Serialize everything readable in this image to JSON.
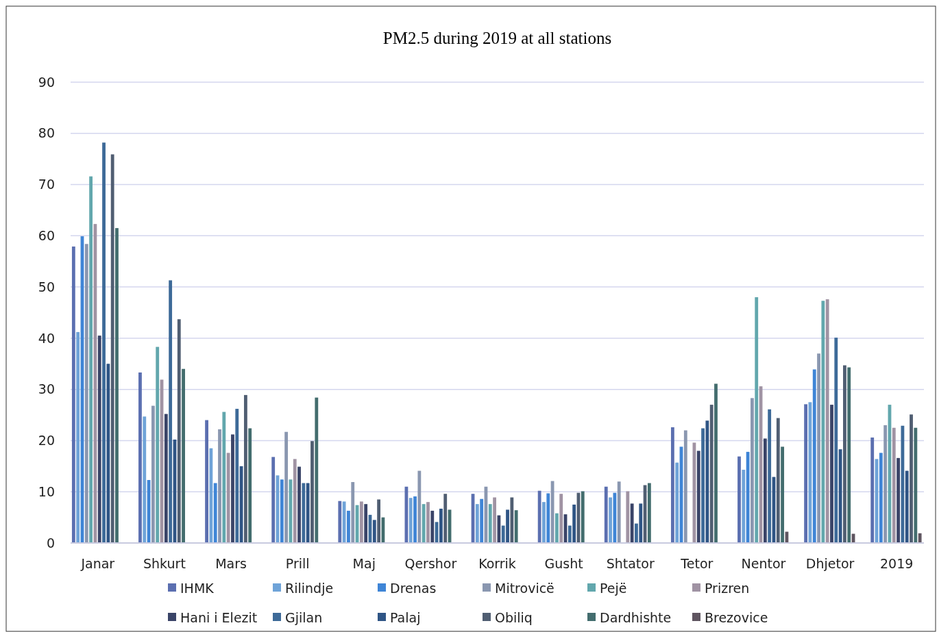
{
  "chart_data": {
    "type": "bar",
    "title": "PM2.5 during 2019 at all stations",
    "categories": [
      "Janar",
      "Shkurt",
      "Mars",
      "Prill",
      "Maj",
      "Qershor",
      "Korrik",
      "Gusht",
      "Shtator",
      "Tetor",
      "Nentor",
      "Dhjetor",
      "2019"
    ],
    "ylim": [
      0,
      90
    ],
    "yticks": [
      0,
      10,
      20,
      30,
      40,
      50,
      60,
      70,
      80,
      90
    ],
    "grid": "y",
    "legend": "bottom",
    "series": [
      {
        "name": "IHMK",
        "color": "#5b6fb0",
        "values": [
          57.9,
          33.3,
          24.0,
          16.8,
          8.2,
          11.0,
          9.6,
          10.2,
          11.0,
          22.6,
          16.9,
          27.1,
          20.6
        ]
      },
      {
        "name": "Rilindje",
        "color": "#6fa3d8",
        "values": [
          41.2,
          24.7,
          18.5,
          13.2,
          8.1,
          8.8,
          7.6,
          8.0,
          8.9,
          15.7,
          14.3,
          27.5,
          16.4
        ]
      },
      {
        "name": "Drenas",
        "color": "#3f85d6",
        "values": [
          59.9,
          12.3,
          11.7,
          12.4,
          6.3,
          9.1,
          8.6,
          9.7,
          9.8,
          18.8,
          17.8,
          33.9,
          17.6
        ]
      },
      {
        "name": "Mitrovicë",
        "color": "#8a97b0",
        "values": [
          58.4,
          26.8,
          22.2,
          21.7,
          11.9,
          14.1,
          11.0,
          12.1,
          12.0,
          22.0,
          28.3,
          37.0,
          23.0
        ]
      },
      {
        "name": "Pejë",
        "color": "#62a7ad",
        "values": [
          71.6,
          38.3,
          25.6,
          12.4,
          7.4,
          7.6,
          7.6,
          5.8,
          null,
          null,
          48.0,
          47.3,
          27.0
        ]
      },
      {
        "name": "Prizren",
        "color": "#a093a3",
        "values": [
          62.3,
          31.9,
          17.6,
          16.4,
          8.1,
          8.0,
          8.9,
          9.6,
          10.1,
          19.6,
          30.6,
          47.6,
          22.5
        ]
      },
      {
        "name": "Hani i Elezit",
        "color": "#3a4468",
        "values": [
          40.5,
          25.2,
          21.2,
          14.9,
          7.6,
          6.3,
          5.4,
          5.6,
          7.7,
          18.0,
          20.4,
          27.0,
          16.6
        ]
      },
      {
        "name": "Gjilan",
        "color": "#3d6a98",
        "values": [
          78.2,
          51.3,
          26.2,
          11.7,
          5.5,
          4.1,
          3.4,
          3.4,
          3.8,
          22.4,
          26.1,
          40.1,
          22.9
        ]
      },
      {
        "name": "Palaj",
        "color": "#2f5585",
        "values": [
          35.0,
          20.2,
          15.0,
          11.7,
          4.5,
          6.7,
          6.5,
          7.5,
          7.7,
          23.9,
          12.9,
          18.3,
          14.1
        ]
      },
      {
        "name": "Obiliq",
        "color": "#505e72",
        "values": [
          75.9,
          43.7,
          28.9,
          19.9,
          8.5,
          9.6,
          8.9,
          9.8,
          11.3,
          27.0,
          24.4,
          34.7,
          25.1
        ]
      },
      {
        "name": "Dardhishte",
        "color": "#436d6e",
        "values": [
          61.5,
          34.0,
          22.4,
          28.4,
          5.0,
          6.5,
          6.4,
          10.1,
          11.7,
          31.1,
          18.8,
          34.3,
          22.5
        ]
      },
      {
        "name": "Brezovice",
        "color": "#5f5560",
        "values": [
          null,
          null,
          null,
          null,
          null,
          null,
          null,
          null,
          null,
          null,
          2.2,
          1.8,
          1.9
        ]
      }
    ]
  }
}
